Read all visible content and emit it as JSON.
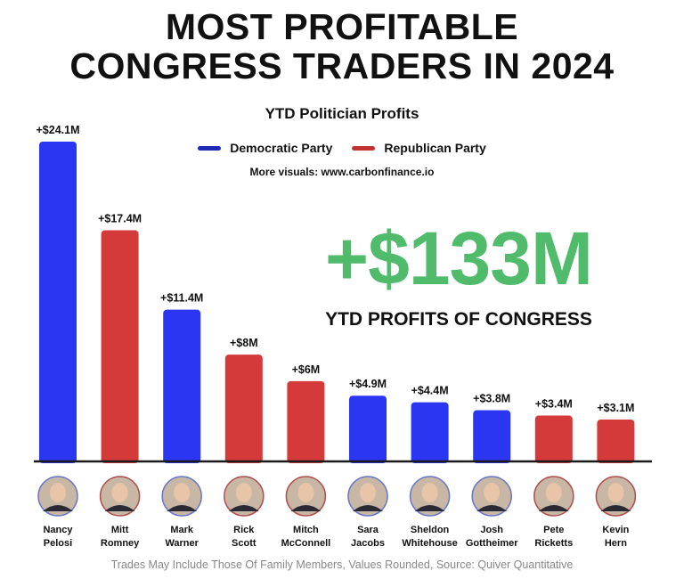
{
  "title_lines": [
    "MOST PROFITABLE",
    "CONGRESS TRADERS IN 2024"
  ],
  "subtitle": "YTD Politician Profits",
  "source_link": "More visuals: www.carbonfinance.io",
  "total": {
    "value": "+$133M",
    "caption": "YTD PROFITS OF CONGRESS"
  },
  "footer": "Trades May Include Those Of Family Members, Values Rounded, Source: Quiver Quantitative",
  "colors": {
    "Democratic Party": "#2a36f2",
    "Republican Party": "#d43a3a",
    "total": "#4fbb6b"
  },
  "chart_data": {
    "type": "bar",
    "title": "YTD Politician Profits",
    "legend": [
      "Democratic Party",
      "Republican Party"
    ],
    "legend_placement": "top-center",
    "grid": false,
    "ylim": [
      0,
      24.1
    ],
    "unit": "$M",
    "categories": [
      {
        "first": "Nancy",
        "last": "Pelosi"
      },
      {
        "first": "Mitt",
        "last": "Romney"
      },
      {
        "first": "Mark",
        "last": "Warner"
      },
      {
        "first": "Rick",
        "last": "Scott"
      },
      {
        "first": "Mitch",
        "last": "McConnell"
      },
      {
        "first": "Sara",
        "last": "Jacobs"
      },
      {
        "first": "Sheldon",
        "last": "Whitehouse"
      },
      {
        "first": "Josh",
        "last": "Gottheimer"
      },
      {
        "first": "Pete",
        "last": "Ricketts"
      },
      {
        "first": "Kevin",
        "last": "Hern"
      }
    ],
    "values": [
      24.1,
      17.4,
      11.4,
      8,
      6,
      4.9,
      4.4,
      3.8,
      3.4,
      3.1
    ],
    "labels": [
      "+$24.1M",
      "+$17.4M",
      "+$11.4M",
      "+$8M",
      "+$6M",
      "+$4.9M",
      "+$4.4M",
      "+$3.8M",
      "+$3.4M",
      "+$3.1M"
    ],
    "party": [
      "Democratic Party",
      "Republican Party",
      "Democratic Party",
      "Republican Party",
      "Republican Party",
      "Democratic Party",
      "Democratic Party",
      "Democratic Party",
      "Republican Party",
      "Republican Party"
    ]
  }
}
